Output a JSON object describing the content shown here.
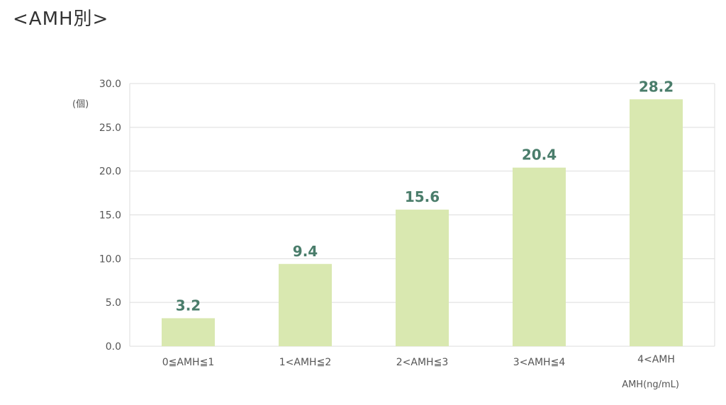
{
  "title": "<AMH別>",
  "colors": {
    "bar": "#d9e8b0",
    "value_label": "#4a7d6b",
    "grid": "#dddddd"
  },
  "chart_data": {
    "type": "bar",
    "title": "<AMH別>",
    "categories": [
      "0≦AMH≦1",
      "1<AMH≦2",
      "2<AMH≦3",
      "3<AMH≦4",
      "4<AMH"
    ],
    "values": [
      3.2,
      9.4,
      15.6,
      20.4,
      28.2
    ],
    "value_labels": [
      "3.2",
      "9.4",
      "15.6",
      "20.4",
      "28.2"
    ],
    "xlabel": "AMH(ng/mL)",
    "ylabel": "(個)",
    "ylim": [
      0,
      30
    ],
    "yticks": [
      "0.0",
      "5.0",
      "10.0",
      "15.0",
      "20.0",
      "25.0",
      "30.0"
    ],
    "grid": true,
    "legend": "none"
  }
}
